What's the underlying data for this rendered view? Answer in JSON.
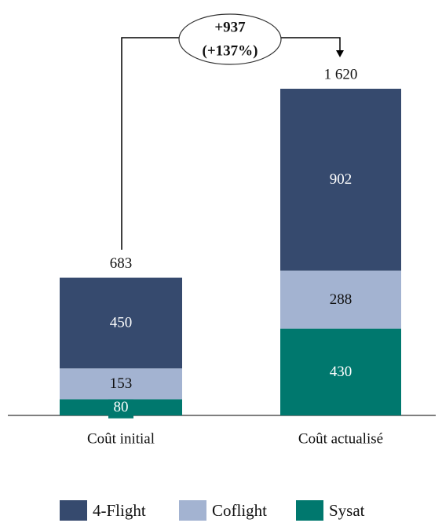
{
  "chart_data": {
    "type": "stacked_bar",
    "categories": [
      "Coût initial",
      "Coût actualisé"
    ],
    "series": [
      {
        "name": "4-Flight",
        "color": "#364a6e",
        "label_color": "#ffffff",
        "values": [
          450,
          902
        ]
      },
      {
        "name": "Coflight",
        "color": "#a3b3d1",
        "label_color": "#111111",
        "values": [
          153,
          288
        ]
      },
      {
        "name": "Sysat",
        "color": "#00786e",
        "label_color": "#ffffff",
        "values": [
          80,
          430
        ]
      }
    ],
    "totals": {
      "values": [
        683,
        1620
      ],
      "value_labels": [
        "683",
        "1 620"
      ]
    },
    "annotation": [
      "+937",
      "(+137%)"
    ]
  }
}
